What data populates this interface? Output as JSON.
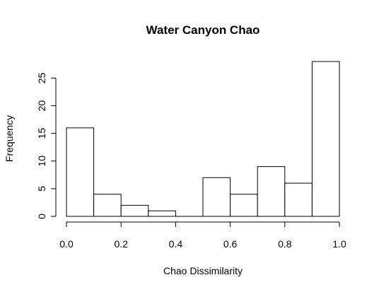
{
  "chart_data": {
    "type": "bar",
    "title": "Water Canyon Chao",
    "xlabel": "Chao Dissimilarity",
    "ylabel": "Frequency",
    "bins": [
      {
        "x0": 0.0,
        "x1": 0.1,
        "count": 16
      },
      {
        "x0": 0.1,
        "x1": 0.2,
        "count": 4
      },
      {
        "x0": 0.2,
        "x1": 0.3,
        "count": 2
      },
      {
        "x0": 0.3,
        "x1": 0.4,
        "count": 1
      },
      {
        "x0": 0.4,
        "x1": 0.5,
        "count": 0
      },
      {
        "x0": 0.5,
        "x1": 0.6,
        "count": 7
      },
      {
        "x0": 0.6,
        "x1": 0.7,
        "count": 4
      },
      {
        "x0": 0.7,
        "x1": 0.8,
        "count": 9
      },
      {
        "x0": 0.8,
        "x1": 0.9,
        "count": 6
      },
      {
        "x0": 0.9,
        "x1": 1.0,
        "count": 28
      }
    ],
    "xlim": [
      0.0,
      1.0
    ],
    "ylim": [
      0,
      28
    ],
    "x_ticks": [
      0.0,
      0.2,
      0.4,
      0.6,
      0.8,
      1.0
    ],
    "x_tick_labels": [
      "0.0",
      "0.2",
      "0.4",
      "0.6",
      "0.8",
      "1.0"
    ],
    "y_ticks": [
      0,
      5,
      10,
      15,
      20,
      25
    ],
    "y_tick_labels": [
      "0",
      "5",
      "10",
      "15",
      "20",
      "25"
    ],
    "grid": false,
    "colors": {
      "bar_fill": "#ffffff",
      "bar_stroke": "#000000"
    }
  }
}
